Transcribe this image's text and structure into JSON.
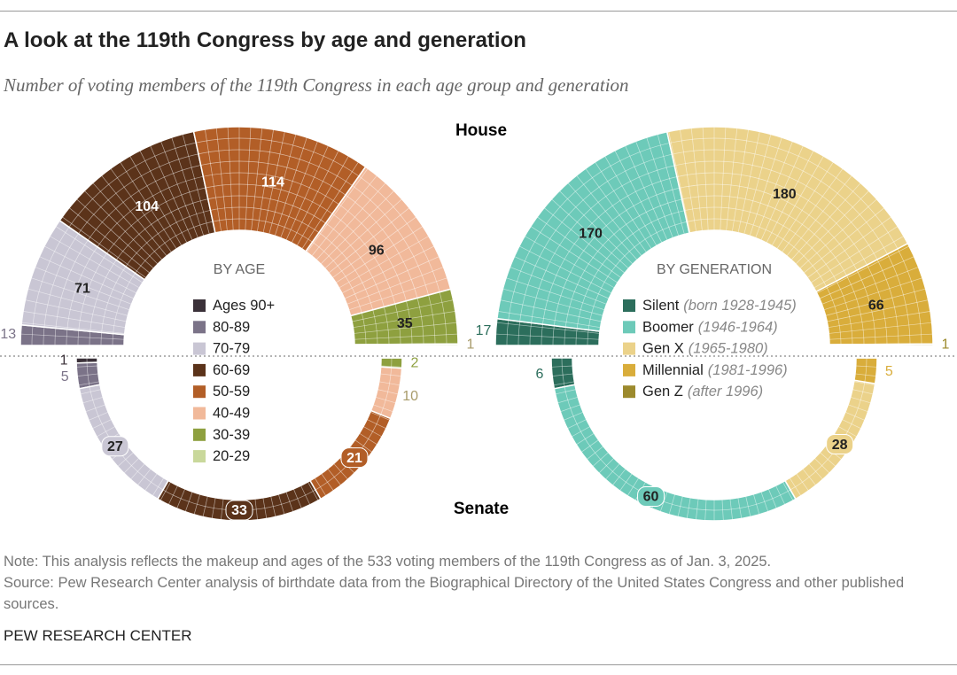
{
  "title": "A look at the 119th Congress by age and generation",
  "subtitle": "Number of voting members of the 119th Congress in each age group and generation",
  "house_label": "House",
  "senate_label": "Senate",
  "chart_data": [
    {
      "type": "semicircle",
      "title": "BY AGE",
      "series": [
        {
          "name": "Ages 90+",
          "color": "#3b3139",
          "values": [
            0,
            1
          ]
        },
        {
          "name": "80-89",
          "color": "#7b7388",
          "values": [
            13,
            5
          ]
        },
        {
          "name": "70-79",
          "color": "#c9c6d4",
          "values": [
            71,
            27
          ]
        },
        {
          "name": "60-69",
          "color": "#5b331a",
          "values": [
            104,
            33
          ]
        },
        {
          "name": "50-59",
          "color": "#b25e27",
          "values": [
            114,
            21
          ]
        },
        {
          "name": "40-49",
          "color": "#f1b99a",
          "values": [
            96,
            10
          ]
        },
        {
          "name": "30-39",
          "color": "#8ea03f",
          "values": [
            35,
            2
          ]
        },
        {
          "name": "20-29",
          "color": "#c9d89b",
          "values": [
            1,
            0
          ]
        }
      ]
    },
    {
      "type": "semicircle",
      "title": "BY GENERATION",
      "series": [
        {
          "name": "Silent",
          "years": "(born 1928-1945)",
          "color": "#2c6e5c",
          "values": [
            17,
            6
          ]
        },
        {
          "name": "Boomer",
          "years": "(1946-1964)",
          "color": "#6dcab9",
          "values": [
            170,
            60
          ]
        },
        {
          "name": "Gen X",
          "years": "(1965-1980)",
          "color": "#ebd28a",
          "values": [
            180,
            28
          ]
        },
        {
          "name": "Millennial",
          "years": "(1981-1996)",
          "color": "#d9ad3b",
          "values": [
            66,
            5
          ]
        },
        {
          "name": "Gen Z",
          "years": "(after 1996)",
          "color": "#9c8a2d",
          "values": [
            1,
            0
          ]
        }
      ]
    }
  ],
  "note": "Note: This analysis reflects the makeup and ages of the 533 voting members of the 119th Congress as of Jan. 3, 2025.",
  "source": "Source: Pew Research Center analysis of birthdate data from the Biographical Directory of the United States Congress and other published sources.",
  "footer": "PEW RESEARCH CENTER"
}
